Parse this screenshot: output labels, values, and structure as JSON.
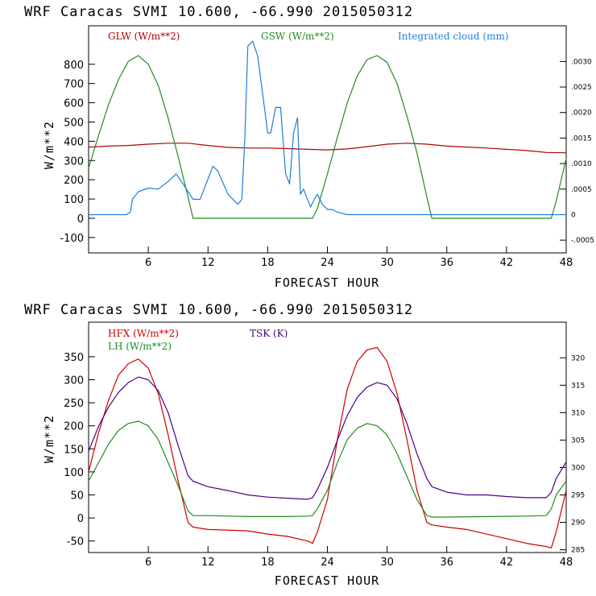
{
  "chart_data": [
    {
      "type": "line",
      "title": "WRF  Caracas SVMI  10.600, -66.990  2015050312",
      "xlabel": "FORECAST HOUR",
      "ylabel": "W/m**2",
      "xlim": [
        0,
        48
      ],
      "ylim": [
        -180,
        1000
      ],
      "xticks": [
        6,
        12,
        18,
        24,
        30,
        36,
        42,
        48
      ],
      "yticks": [
        -100,
        0,
        100,
        200,
        300,
        400,
        500,
        600,
        700,
        800
      ],
      "y2lim": [
        -0.00075,
        0.0037
      ],
      "y2ticks": [
        -0.0005,
        0,
        0.0005,
        0.001,
        0.0015,
        0.002,
        0.0025,
        0.003
      ],
      "y2ticklabels": [
        "-.0005",
        "0",
        ".0005",
        ".0010",
        ".0015",
        ".0020",
        ".0025",
        ".0030"
      ],
      "series": [
        {
          "name": "GLW (W/m**2)",
          "color": "#b30000",
          "axis": "left",
          "x": [
            0,
            2,
            4,
            6,
            8,
            10,
            12,
            14,
            16,
            18,
            20,
            22,
            24,
            26,
            28,
            30,
            32,
            34,
            36,
            38,
            40,
            42,
            44,
            46,
            48
          ],
          "y": [
            370,
            375,
            378,
            385,
            390,
            390,
            378,
            368,
            365,
            365,
            362,
            358,
            355,
            360,
            372,
            385,
            390,
            385,
            375,
            370,
            365,
            358,
            352,
            342,
            340
          ]
        },
        {
          "name": "GSW (W/m**2)",
          "color": "#228b22",
          "axis": "left",
          "x": [
            0,
            1,
            2,
            3,
            4,
            5,
            6,
            7,
            8,
            9,
            10,
            10.5,
            12,
            14,
            16,
            18,
            20,
            22,
            22.5,
            23,
            24,
            25,
            26,
            27,
            28,
            29,
            30,
            31,
            32,
            33,
            34,
            34.5,
            36,
            38,
            40,
            42,
            44,
            46,
            46.5,
            47,
            48
          ],
          "y": [
            260,
            430,
            590,
            720,
            815,
            845,
            800,
            690,
            520,
            320,
            110,
            0,
            0,
            0,
            0,
            0,
            0,
            0,
            0,
            50,
            230,
            420,
            600,
            740,
            825,
            845,
            810,
            700,
            530,
            340,
            110,
            0,
            0,
            0,
            0,
            0,
            0,
            0,
            0,
            90,
            310
          ]
        }
      ]
    },
    {
      "type": "line",
      "title": "WRF  Caracas SVMI  10.600, -66.990  2015050312",
      "xlabel": "FORECAST HOUR",
      "ylabel": "W/m**2",
      "xlim": [
        0,
        48
      ],
      "ylim": [
        -75,
        425
      ],
      "xticks": [
        6,
        12,
        18,
        24,
        30,
        36,
        42,
        48
      ],
      "yticks": [
        -50,
        0,
        50,
        100,
        150,
        200,
        250,
        300,
        350
      ],
      "y2lim": [
        284.5,
        326.5
      ],
      "y2ticks": [
        285,
        290,
        295,
        300,
        305,
        310,
        315,
        320
      ],
      "y2ticklabels": [
        "285",
        "290",
        "295",
        "300",
        "305",
        "310",
        "315",
        "320"
      ],
      "series": [
        {
          "name": "HFX (W/m**2)",
          "color": "#cc0000",
          "axis": "left",
          "x": [
            0,
            1,
            2,
            3,
            4,
            5,
            6,
            7,
            8,
            9,
            10,
            10.5,
            12,
            16,
            18,
            20,
            22,
            22.5,
            23,
            24,
            25,
            26,
            27,
            28,
            29,
            30,
            31,
            32,
            33,
            34,
            34.5,
            36,
            38,
            40,
            42,
            44,
            46,
            46.5,
            47,
            48
          ],
          "y": [
            100,
            185,
            255,
            310,
            335,
            345,
            325,
            270,
            180,
            80,
            -10,
            -20,
            -25,
            -28,
            -35,
            -40,
            -50,
            -55,
            -30,
            40,
            170,
            280,
            340,
            365,
            370,
            340,
            270,
            170,
            60,
            -10,
            -15,
            -20,
            -25,
            -35,
            -45,
            -55,
            -62,
            -65,
            -30,
            60
          ]
        },
        {
          "name": "LH (W/m**2)",
          "color": "#228b22",
          "axis": "left",
          "x": [
            0,
            1,
            2,
            3,
            4,
            5,
            6,
            7,
            8,
            9,
            10,
            10.5,
            12,
            16,
            20,
            22,
            22.5,
            23,
            24,
            25,
            26,
            27,
            28,
            29,
            30,
            31,
            32,
            33,
            34,
            34.5,
            36,
            40,
            44,
            46,
            46.5,
            47,
            48
          ],
          "y": [
            80,
            120,
            160,
            190,
            205,
            210,
            200,
            170,
            120,
            70,
            15,
            5,
            5,
            3,
            3,
            4,
            5,
            20,
            60,
            120,
            170,
            195,
            205,
            200,
            180,
            140,
            90,
            40,
            5,
            2,
            2,
            3,
            4,
            5,
            20,
            50,
            80
          ]
        },
        {
          "name": "TSK (K)",
          "color": "#4b0082",
          "axis": "right",
          "x": [
            0,
            1,
            2,
            3,
            4,
            5,
            6,
            7,
            8,
            9,
            10,
            10.5,
            12,
            14,
            16,
            18,
            20,
            22,
            22.5,
            23,
            24,
            25,
            26,
            27,
            28,
            29,
            30,
            31,
            32,
            33,
            34,
            34.5,
            36,
            38,
            40,
            42,
            44,
            46,
            46.5,
            47,
            48
          ],
          "y": [
            303,
            307.5,
            311,
            313.7,
            315.5,
            316.5,
            316,
            314,
            310,
            304,
            298.5,
            297.5,
            296.5,
            295.8,
            295,
            294.6,
            294.4,
            294.2,
            294.5,
            296,
            300,
            305,
            309.5,
            312.8,
            314.7,
            315.5,
            315,
            312.5,
            308,
            302.5,
            298,
            296.5,
            295.5,
            295,
            295,
            294.7,
            294.5,
            294.5,
            295.5,
            298,
            301
          ]
        }
      ]
    }
  ],
  "top_chart": {
    "legend": {
      "glw": {
        "label": "GLW (W/m**2)",
        "color": "#b30000"
      },
      "gsw": {
        "label": "GSW (W/m**2)",
        "color": "#228b22"
      },
      "cloud": {
        "label": "Integrated cloud (mm)",
        "color": "#1e7fd8"
      }
    }
  },
  "bottom_chart": {
    "legend": {
      "hfx": {
        "label": "HFX (W/m**2)",
        "color": "#cc0000"
      },
      "lh": {
        "label": "LH (W/m**2)",
        "color": "#228b22"
      },
      "tsk": {
        "label": "TSK (K)",
        "color": "#4b0082"
      }
    }
  },
  "cloud_series": {
    "name": "Integrated cloud (mm)",
    "color": "#1e7fd8",
    "axis": "right",
    "x": [
      0,
      1,
      2,
      3,
      3.8,
      4.2,
      4.4,
      5,
      6,
      7,
      8,
      8.8,
      9.5,
      10.5,
      11.2,
      12,
      12.5,
      13,
      14,
      15,
      15.4,
      15.7,
      16,
      16.5,
      17,
      17.4,
      18,
      18.3,
      18.8,
      19.3,
      19.8,
      20.2,
      20.6,
      21,
      21.3,
      21.6,
      22,
      22.3,
      22.7,
      23,
      23.5,
      24,
      24.5,
      25,
      26,
      26.3,
      27,
      30,
      36,
      42,
      48
    ],
    "y": [
      0,
      0,
      0,
      0,
      0,
      5e-05,
      0.0003,
      0.00045,
      0.00052,
      0.0005,
      0.00065,
      0.0008,
      0.0006,
      0.0003,
      0.0003,
      0.0007,
      0.00095,
      0.00085,
      0.0004,
      0.0002,
      0.0003,
      0.0015,
      0.0033,
      0.0034,
      0.0031,
      0.0025,
      0.0016,
      0.0016,
      0.0021,
      0.0021,
      0.0008,
      0.0006,
      0.0016,
      0.0019,
      0.0004,
      0.0005,
      0.0003,
      0.00015,
      0.0003,
      0.0004,
      0.0002,
      0.0001,
      0.0001,
      5e-05,
      0,
      0,
      0,
      0,
      0,
      0,
      0
    ]
  }
}
